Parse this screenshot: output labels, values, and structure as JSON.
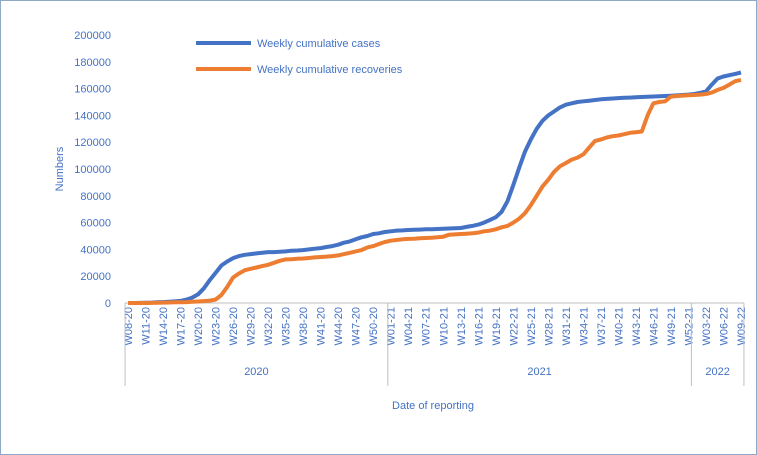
{
  "chart_data": {
    "type": "line",
    "y_label": "Numbers",
    "x_label": "Date of reporting",
    "categories": [
      "W08-20",
      null,
      null,
      "W11-20",
      null,
      null,
      "W14-20",
      null,
      null,
      "W17-20",
      null,
      null,
      "W20-20",
      null,
      null,
      "W23-20",
      null,
      null,
      "W26-20",
      null,
      null,
      "W29-20",
      null,
      null,
      "W32-20",
      null,
      null,
      "W35-20",
      null,
      null,
      "W38-20",
      null,
      null,
      "W41-20",
      null,
      null,
      "W44-20",
      null,
      null,
      "W47-20",
      null,
      null,
      "W50-20",
      null,
      null,
      "W01-21",
      null,
      null,
      "W04-21",
      null,
      null,
      "W07-21",
      null,
      null,
      "W10-21",
      null,
      null,
      "W13-21",
      null,
      null,
      "W16-21",
      null,
      null,
      "W19-21",
      null,
      null,
      "W22-21",
      null,
      null,
      "W25-21",
      null,
      null,
      "W28-21",
      null,
      null,
      "W31-21",
      null,
      null,
      "W34-21",
      null,
      null,
      "W37-21",
      null,
      null,
      "W40-21",
      null,
      null,
      "W43-21",
      null,
      null,
      "W46-21",
      null,
      null,
      "W49-21",
      null,
      null,
      "W52-21",
      null,
      null,
      "W03-22",
      null,
      null,
      "W06-22",
      null,
      null,
      "W09-22"
    ],
    "groups": [
      {
        "label": "2020",
        "span": 45
      },
      {
        "label": "2021",
        "span": 52
      },
      {
        "label": "2022",
        "span": 9
      }
    ],
    "series": [
      {
        "name": "Weekly cumulative cases",
        "color": "#4472c4",
        "values": [
          0,
          0,
          100,
          200,
          300,
          500,
          700,
          900,
          1200,
          1600,
          2500,
          4000,
          6500,
          11000,
          17000,
          22500,
          28000,
          31000,
          33500,
          35000,
          36000,
          36500,
          37000,
          37500,
          38000,
          38000,
          38200,
          38500,
          39000,
          39200,
          39500,
          40000,
          40500,
          41000,
          41800,
          42500,
          43500,
          45000,
          46000,
          47500,
          49000,
          50000,
          51500,
          52000,
          53000,
          53500,
          54000,
          54200,
          54500,
          54600,
          54800,
          55000,
          55000,
          55200,
          55400,
          55600,
          55800,
          56000,
          56800,
          57500,
          58500,
          60000,
          62000,
          64000,
          68000,
          76000,
          88000,
          101000,
          113000,
          122000,
          130000,
          136000,
          140000,
          143000,
          146000,
          148000,
          149000,
          150000,
          150500,
          151000,
          151500,
          152000,
          152300,
          152600,
          152900,
          153100,
          153300,
          153500,
          153700,
          153900,
          154100,
          154300,
          154500,
          154700,
          154900,
          155200,
          155500,
          156000,
          156800,
          158000,
          163000,
          167500,
          169000,
          170000,
          171000,
          172000
        ]
      },
      {
        "name": "Weekly cumulative recoveries",
        "color": "#ed7d31",
        "values": [
          0,
          0,
          0,
          0,
          100,
          200,
          300,
          400,
          500,
          600,
          700,
          900,
          1100,
          1400,
          1800,
          2500,
          6000,
          12000,
          19000,
          22000,
          24500,
          25500,
          26500,
          27500,
          28500,
          30000,
          31500,
          32500,
          32700,
          33000,
          33200,
          33600,
          34000,
          34300,
          34600,
          35000,
          35500,
          36500,
          37500,
          38500,
          39500,
          41500,
          42500,
          44000,
          45500,
          46500,
          47000,
          47500,
          47800,
          48000,
          48300,
          48500,
          48700,
          49000,
          49500,
          51000,
          51200,
          51500,
          51700,
          52000,
          52500,
          53500,
          54000,
          55000,
          56500,
          57500,
          60000,
          63000,
          67000,
          73000,
          80000,
          87000,
          92000,
          98000,
          102000,
          104500,
          107000,
          108500,
          111000,
          116000,
          121000,
          122000,
          123500,
          124500,
          125000,
          126000,
          127000,
          127500,
          128000,
          140000,
          149000,
          150000,
          150500,
          154000,
          154500,
          154800,
          155000,
          155200,
          155500,
          156000,
          157000,
          159000,
          160500,
          163000,
          165500,
          166500
        ]
      }
    ],
    "ylim": [
      0,
      200000
    ],
    "yticks": [
      0,
      20000,
      40000,
      60000,
      80000,
      100000,
      120000,
      140000,
      160000,
      180000,
      200000
    ],
    "grid": false
  }
}
